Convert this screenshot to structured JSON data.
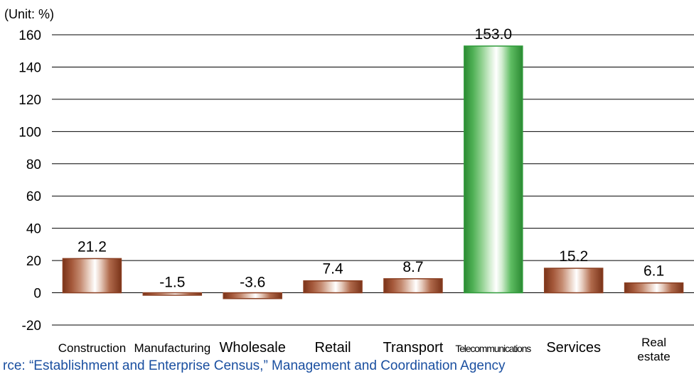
{
  "chart_data": {
    "type": "bar",
    "unit_label": "(Unit: %)",
    "categories": [
      "Construction",
      "Manufacturing",
      "Wholesale",
      "Retail",
      "Transport",
      "Telecommunications",
      "Services",
      "Real estate"
    ],
    "values": [
      21.2,
      -1.5,
      -3.6,
      7.4,
      8.7,
      153.0,
      15.2,
      6.1
    ],
    "value_labels": [
      "21.2",
      "-1.5",
      "-3.6",
      "7.4",
      "8.7",
      "153.0",
      "15.2",
      "6.1"
    ],
    "ylim": [
      -20,
      160
    ],
    "yticks": [
      -20,
      0,
      20,
      40,
      60,
      80,
      100,
      120,
      140,
      160
    ],
    "grid": true,
    "highlight_index": 5,
    "colors": {
      "bar": "#8a3f22",
      "highlight": "#2f9a3a",
      "grid": "#000000"
    }
  },
  "source": "rce: “Establishment and Enterprise Census,” Management and Coordination Agency"
}
